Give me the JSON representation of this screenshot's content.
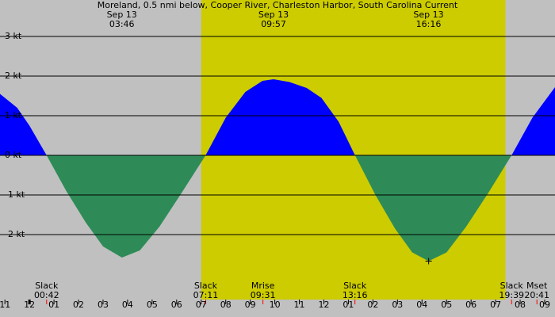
{
  "chart_data": {
    "type": "area",
    "title": "Moreland, 0.5 nmi below, Cooper River, Charleston Harbor, South Carolina Current",
    "xlim": [
      -1.2,
      21.42
    ],
    "ylim": [
      -3.64,
      3.92
    ],
    "yticks": [
      {
        "value": 3,
        "label": "3 kt"
      },
      {
        "value": 2,
        "label": "2 kt"
      },
      {
        "value": 1,
        "label": "1 kt"
      },
      {
        "value": 0,
        "label": "0 kt"
      },
      {
        "value": -1,
        "label": "-1 kt"
      },
      {
        "value": -2,
        "label": "-2 kt"
      }
    ],
    "xticks": [
      {
        "value": -1,
        "label": "11"
      },
      {
        "value": 0,
        "label": "12"
      },
      {
        "value": 1,
        "label": "01"
      },
      {
        "value": 2,
        "label": "02"
      },
      {
        "value": 3,
        "label": "03"
      },
      {
        "value": 4,
        "label": "04"
      },
      {
        "value": 5,
        "label": "05"
      },
      {
        "value": 6,
        "label": "06"
      },
      {
        "value": 7,
        "label": "07"
      },
      {
        "value": 8,
        "label": "08"
      },
      {
        "value": 9,
        "label": "09"
      },
      {
        "value": 10,
        "label": "10"
      },
      {
        "value": 11,
        "label": "11"
      },
      {
        "value": 12,
        "label": "12"
      },
      {
        "value": 13,
        "label": "01"
      },
      {
        "value": 14,
        "label": "02"
      },
      {
        "value": 15,
        "label": "03"
      },
      {
        "value": 16,
        "label": "04"
      },
      {
        "value": 17,
        "label": "05"
      },
      {
        "value": 18,
        "label": "06"
      },
      {
        "value": 19,
        "label": "07"
      },
      {
        "value": 20,
        "label": "08"
      },
      {
        "value": 21,
        "label": "09"
      }
    ],
    "grid": true,
    "background_color": "#c0c0c0",
    "daylight_color": "#cccc00",
    "daylight_hours": [
      7.0,
      19.4
    ],
    "flood_color": "#0000ff",
    "ebb_color": "#2e8b57",
    "x": [
      -1.2,
      -0.5,
      0,
      0.7,
      1.5,
      2.3,
      3.0,
      3.77,
      4.5,
      5.3,
      6.2,
      7.18,
      8.0,
      8.8,
      9.5,
      9.95,
      10.6,
      11.3,
      11.9,
      12.6,
      13.27,
      14.1,
      14.9,
      15.6,
      16.27,
      17.0,
      17.8,
      18.7,
      19.65,
      20.5,
      21.42
    ],
    "values": [
      1.55,
      1.2,
      0.75,
      0,
      -0.9,
      -1.7,
      -2.3,
      -2.58,
      -2.4,
      -1.8,
      -0.95,
      0,
      0.95,
      1.6,
      1.88,
      1.92,
      1.85,
      1.7,
      1.45,
      0.85,
      0,
      -1.0,
      -1.85,
      -2.45,
      -2.67,
      -2.45,
      -1.8,
      -0.95,
      0,
      0.95,
      1.72
    ],
    "extremes": [
      {
        "date": "Sep 13",
        "time": "03:46"
      },
      {
        "date": "Sep 13",
        "time": "09:57"
      },
      {
        "date": "Sep 13",
        "time": "16:16"
      }
    ],
    "events": [
      {
        "name": "Slack",
        "time": "00:42"
      },
      {
        "name": "Slack",
        "time": "07:11"
      },
      {
        "name": "Mrise",
        "time": "09:31"
      },
      {
        "name": "Slack",
        "time": "13:16"
      },
      {
        "name": "Slack",
        "time": "19:39"
      },
      {
        "name": "Mset",
        "time": "20:41"
      }
    ]
  }
}
